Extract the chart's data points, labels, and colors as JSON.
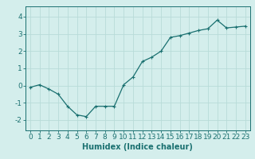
{
  "x": [
    0,
    1,
    2,
    3,
    4,
    5,
    6,
    7,
    8,
    9,
    10,
    11,
    12,
    13,
    14,
    15,
    16,
    17,
    18,
    19,
    20,
    21,
    22,
    23
  ],
  "y": [
    -0.1,
    0.05,
    -0.2,
    -0.5,
    -1.2,
    -1.7,
    -1.8,
    -1.2,
    -1.2,
    -1.2,
    0.05,
    0.5,
    1.4,
    1.65,
    2.0,
    2.8,
    2.9,
    3.05,
    3.2,
    3.3,
    3.8,
    3.35,
    3.4,
    3.45
  ],
  "line_color": "#1a7070",
  "marker_color": "#1a7070",
  "bg_color": "#d4eeec",
  "grid_color": "#b8dbd8",
  "axis_color": "#1a7070",
  "xlabel": "Humidex (Indice chaleur)",
  "xlim": [
    -0.5,
    23.5
  ],
  "ylim": [
    -2.6,
    4.6
  ],
  "yticks": [
    -2,
    -1,
    0,
    1,
    2,
    3,
    4
  ],
  "xticks": [
    0,
    1,
    2,
    3,
    4,
    5,
    6,
    7,
    8,
    9,
    10,
    11,
    12,
    13,
    14,
    15,
    16,
    17,
    18,
    19,
    20,
    21,
    22,
    23
  ],
  "xlabel_fontsize": 7.0,
  "tick_fontsize": 6.5,
  "marker_size": 2.5,
  "line_width": 0.9
}
